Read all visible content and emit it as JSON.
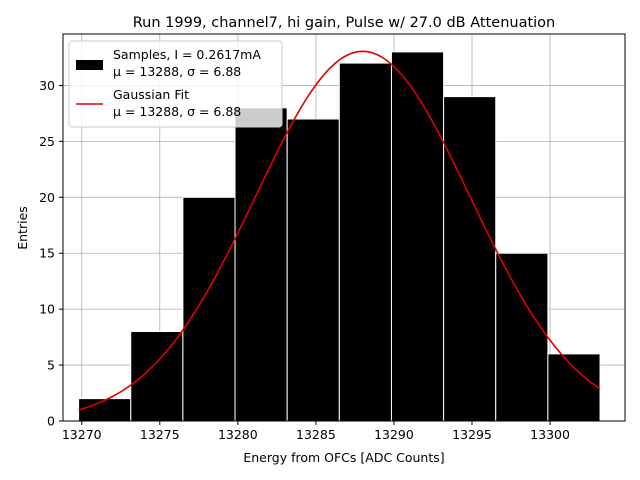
{
  "chart_data": {
    "type": "bar",
    "title": "Run 1999, channel7, hi gain, Pulse w/ 27.0 dB Attenuation",
    "xlabel": "Energy from OFCs [ADC Counts]",
    "ylabel": "Entries",
    "xlim": [
      13268.8,
      13304.8
    ],
    "ylim": [
      0,
      34.6
    ],
    "xticks": [
      13270,
      13275,
      13280,
      13285,
      13290,
      13295,
      13300
    ],
    "yticks": [
      0,
      5,
      10,
      15,
      20,
      25,
      30
    ],
    "grid": true,
    "legend_position": "top-left",
    "bins": {
      "edges": [
        13269.8,
        13273.14,
        13276.48,
        13279.82,
        13283.16,
        13286.5,
        13289.84,
        13293.18,
        13296.52,
        13299.86,
        13303.2
      ],
      "counts": [
        2,
        8,
        20,
        28,
        27,
        32,
        33,
        29,
        15,
        6
      ]
    },
    "fit": {
      "type": "gaussian",
      "mu": 13288,
      "sigma": 6.88,
      "peak": 33.05
    },
    "legend": {
      "entries": [
        {
          "label_line1": "Samples, I = 0.2617mA",
          "label_line2": "μ = 13288, σ = 6.88",
          "color": "#000000",
          "kind": "bar"
        },
        {
          "label_line1": "Gaussian Fit",
          "label_line2": "μ = 13288, σ = 6.88",
          "color": "#e00000",
          "kind": "line"
        }
      ]
    }
  }
}
